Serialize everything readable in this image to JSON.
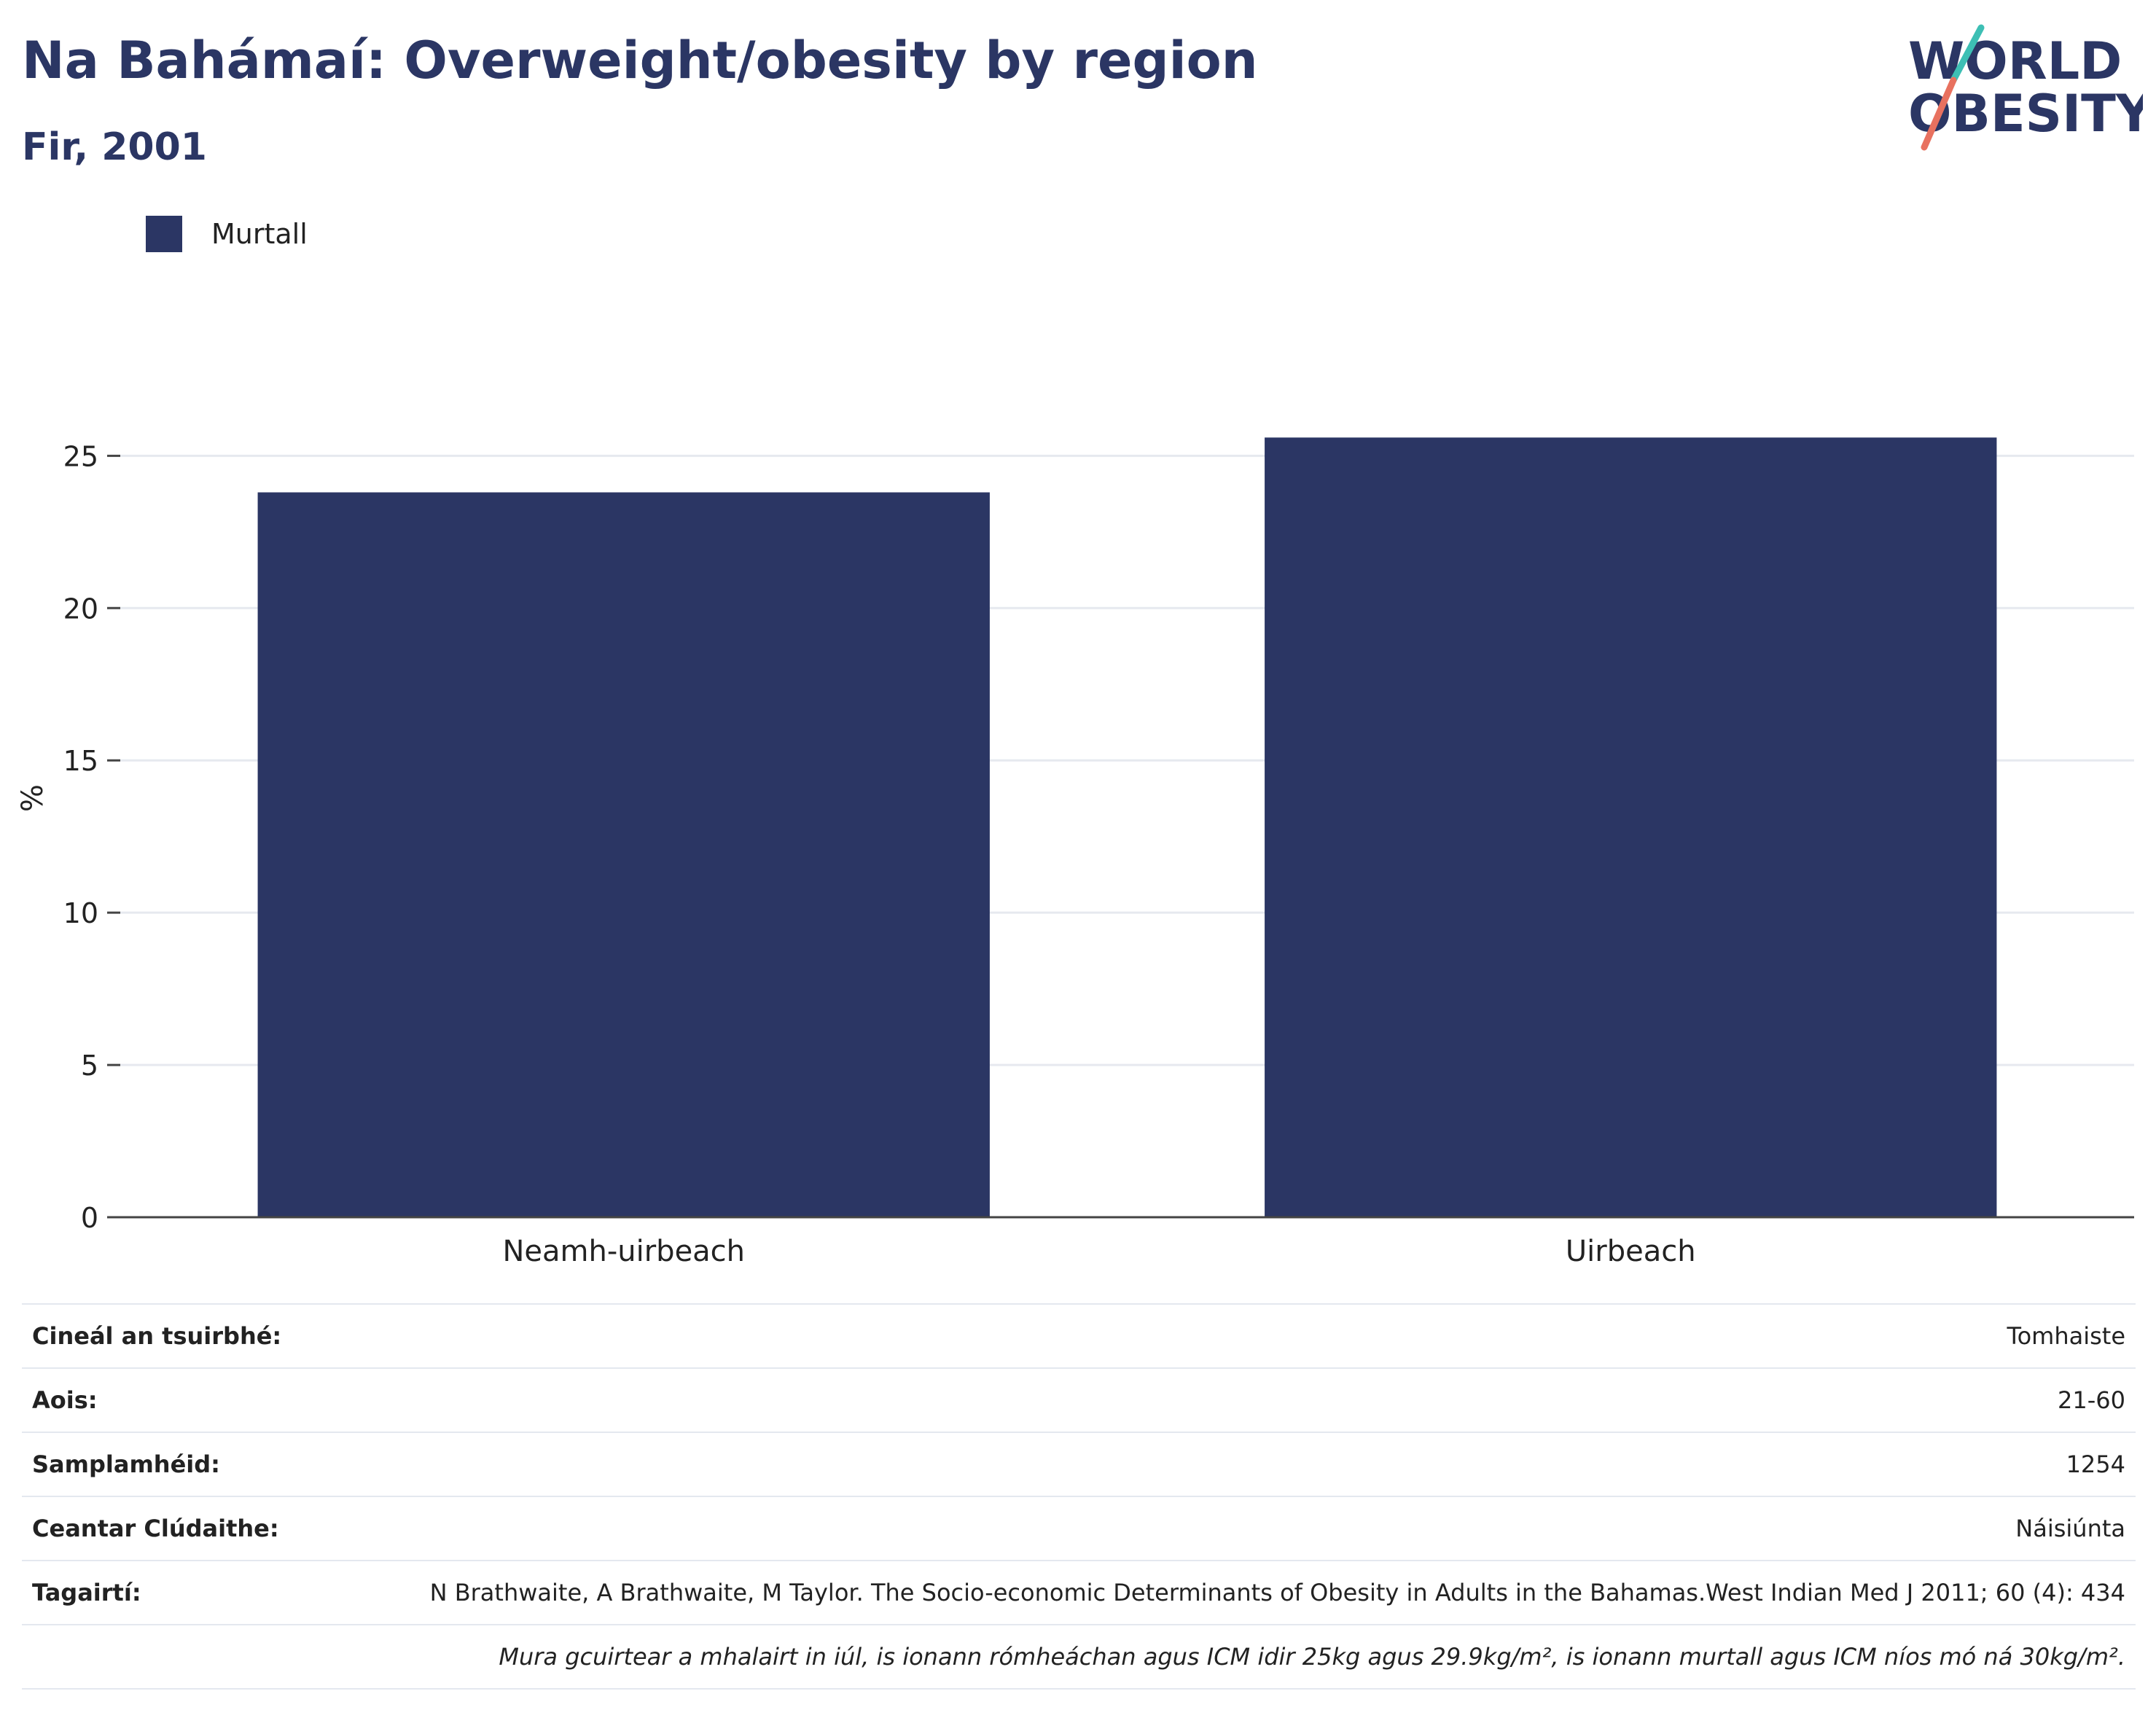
{
  "header": {
    "title": "Na Bahámaí: Overweight/obesity by region",
    "subtitle": "Fir, 2001",
    "logo_line1": "WORLD",
    "logo_line2": "OBESITY"
  },
  "colors": {
    "bar": "#2b3664",
    "title": "#2b3664",
    "logo_teal": "#3dbfb4",
    "logo_coral": "#e8715f",
    "gridline": "#e6e9ef"
  },
  "chart_data": {
    "type": "bar",
    "categories": [
      "Neamh-uirbeach",
      "Uirbeach"
    ],
    "series": [
      {
        "name": "Murtall",
        "values": [
          23.8,
          25.6
        ]
      }
    ],
    "ylabel": "%",
    "xlabel": "",
    "ylim": [
      0,
      28
    ],
    "yticks": [
      0,
      5,
      10,
      15,
      20,
      25
    ],
    "grid": true,
    "legend_position": "top-left"
  },
  "info": {
    "rows": [
      {
        "label": "Cineál an tsuirbhé:",
        "value": "Tomhaiste"
      },
      {
        "label": "Aois:",
        "value": "21-60"
      },
      {
        "label": "Samplamhéid:",
        "value": "1254"
      },
      {
        "label": "Ceantar Clúdaithe:",
        "value": "Náisiúnta"
      },
      {
        "label": "Tagairtí:",
        "value": "N Brathwaite, A Brathwaite, M Taylor. The Socio-economic Determinants of Obesity in Adults in the Bahamas.West Indian Med J 2011; 60 (4): 434"
      }
    ],
    "note": "Mura gcuirtear a mhalairt in iúl, is ionann rómheáchan agus ICM idir 25kg agus 29.9kg/m², is ionann murtall agus ICM níos mó ná 30kg/m²."
  }
}
